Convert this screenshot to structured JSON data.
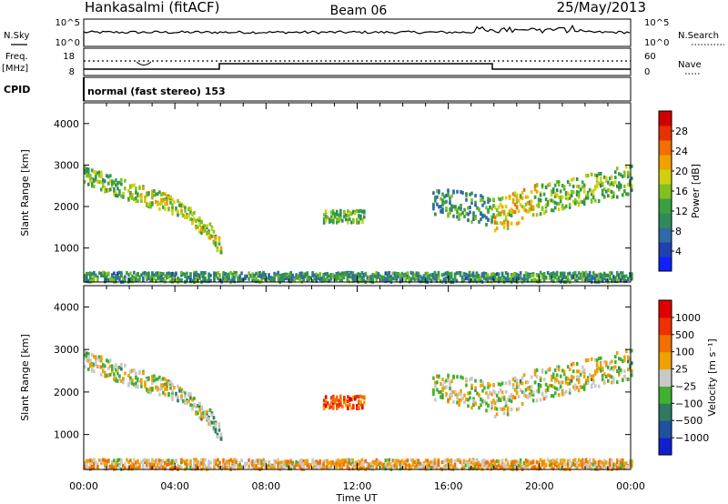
{
  "header": {
    "station": "Hankasalmi (fitACF)",
    "beam": "Beam 06",
    "date": "25/May/2013"
  },
  "top_panels": {
    "nsky_label": "N.Sky",
    "nsearch_label": "N.Search",
    "noise_ticks": [
      "10^5",
      "10^0"
    ],
    "freq_label": "Freq.",
    "freq_unit": "[MHz]",
    "freq_ticks": [
      "18",
      "8"
    ],
    "nave_label": "Nave",
    "nave_ticks": [
      "60",
      "0"
    ],
    "cpid_label": "CPID",
    "cpid_value": "normal (fast stereo) 153"
  },
  "time_axis": {
    "label": "Time UT",
    "ticks": [
      "00:00",
      "04:00",
      "08:00",
      "12:00",
      "16:00",
      "20:00",
      "00:00"
    ]
  },
  "chart_data": [
    {
      "type": "heatmap",
      "ylabel": "Slant Range [km]",
      "yticks": [
        "1000",
        "2000",
        "3000",
        "4000"
      ],
      "ylim": [
        180,
        4500
      ],
      "xlim": [
        0,
        24
      ],
      "colorbar": {
        "label": "Power [dB]",
        "ticks": [
          "4",
          "8",
          "12",
          "16",
          "20",
          "24",
          "28"
        ],
        "colors": [
          "#1020ff",
          "#2040b0",
          "#2f6aa8",
          "#2f8c5a",
          "#3aa040",
          "#80c020",
          "#d0d010",
          "#f0a000",
          "#f07000",
          "#e83000",
          "#d00000"
        ]
      },
      "echo_bands": [
        {
          "t0": 0.0,
          "t1": 2.0,
          "r0": 2800,
          "r1": 2400,
          "w": 220,
          "level": 0.45
        },
        {
          "t0": 2.0,
          "t1": 4.0,
          "r0": 2400,
          "r1": 2050,
          "w": 220,
          "level": 0.55
        },
        {
          "t0": 4.0,
          "t1": 5.5,
          "r0": 2050,
          "r1": 1450,
          "w": 200,
          "level": 0.5
        },
        {
          "t0": 5.5,
          "t1": 6.0,
          "r0": 1450,
          "r1": 1000,
          "w": 200,
          "level": 0.55
        },
        {
          "t0": 10.5,
          "t1": 12.3,
          "r0": 1800,
          "r1": 1800,
          "w": 150,
          "level": 0.45
        },
        {
          "t0": 15.3,
          "t1": 18.0,
          "r0": 2200,
          "r1": 1900,
          "w": 350,
          "level": 0.35
        },
        {
          "t0": 18.0,
          "t1": 20.0,
          "r0": 1800,
          "r1": 2200,
          "w": 400,
          "level": 0.6
        },
        {
          "t0": 20.0,
          "t1": 24.0,
          "r0": 2200,
          "r1": 2700,
          "w": 350,
          "level": 0.45
        },
        {
          "t0": 0.0,
          "t1": 24.0,
          "r0": 330,
          "r1": 330,
          "w": 120,
          "level": 0.35
        }
      ]
    },
    {
      "type": "heatmap",
      "ylabel": "Slant Range [km]",
      "yticks": [
        "1000",
        "2000",
        "3000",
        "4000"
      ],
      "ylim": [
        180,
        4500
      ],
      "xlim": [
        0,
        24
      ],
      "colorbar": {
        "label": "Velocity [m s⁻¹]",
        "ticks": [
          "1000",
          "500",
          "100",
          "25",
          "−25",
          "−100",
          "−500",
          "−1000"
        ],
        "colors": [
          "#1020d0",
          "#2050a0",
          "#2f7a60",
          "#40b030",
          "#c8c8c8",
          "#f0a000",
          "#f07000",
          "#f03000",
          "#e00000"
        ]
      },
      "echo_bands": [
        {
          "t0": 0.0,
          "t1": 2.0,
          "r0": 2800,
          "r1": 2400,
          "w": 220,
          "level": 0.5
        },
        {
          "t0": 2.0,
          "t1": 4.0,
          "r0": 2400,
          "r1": 2050,
          "w": 220,
          "level": 0.5
        },
        {
          "t0": 4.0,
          "t1": 5.5,
          "r0": 2050,
          "r1": 1450,
          "w": 200,
          "level": 0.45
        },
        {
          "t0": 5.5,
          "t1": 6.0,
          "r0": 1450,
          "r1": 1000,
          "w": 200,
          "level": 0.4
        },
        {
          "t0": 10.5,
          "t1": 12.3,
          "r0": 1800,
          "r1": 1800,
          "w": 150,
          "level": 0.8
        },
        {
          "t0": 15.3,
          "t1": 18.0,
          "r0": 2200,
          "r1": 1900,
          "w": 350,
          "level": 0.5
        },
        {
          "t0": 18.0,
          "t1": 20.0,
          "r0": 1800,
          "r1": 2200,
          "w": 400,
          "level": 0.5
        },
        {
          "t0": 20.0,
          "t1": 24.0,
          "r0": 2200,
          "r1": 2700,
          "w": 350,
          "level": 0.5
        },
        {
          "t0": 0.0,
          "t1": 24.0,
          "r0": 330,
          "r1": 330,
          "w": 120,
          "level": 0.6
        }
      ]
    }
  ]
}
